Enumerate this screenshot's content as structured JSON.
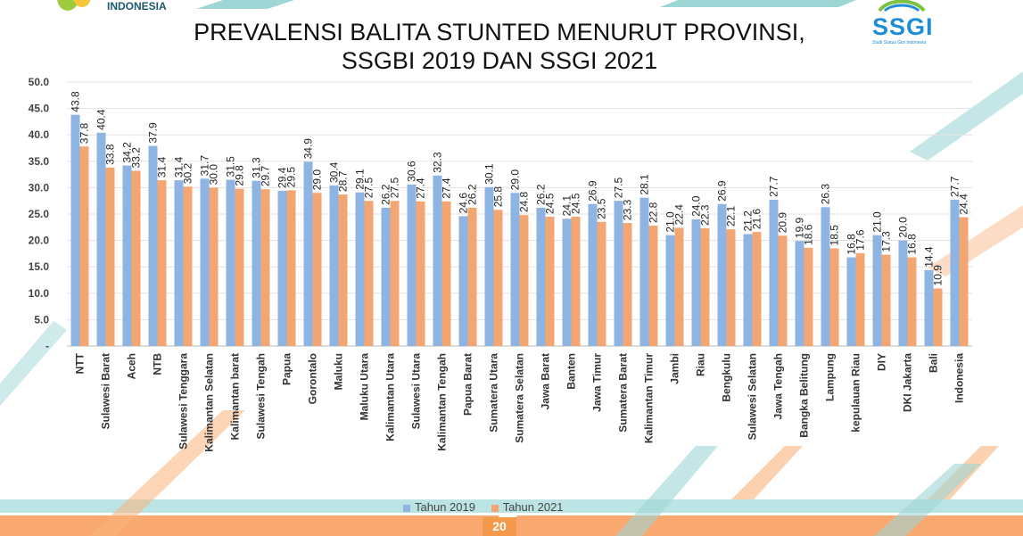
{
  "header": {
    "org_text": "INDONESIA",
    "title_line1": "PREVALENSI BALITA STUNTED MENURUT PROVINSI,",
    "title_line2": "SSGBI 2019 DAN SSGI 2021",
    "logo_word": "SSGI",
    "logo_sub": "Studi Status Gizi Indonesia"
  },
  "footer": {
    "page_number": "20"
  },
  "colors": {
    "series_2019": "#8eb4e3",
    "series_2021": "#f4a672",
    "teal": "#9ed6d6",
    "orange": "#f9b27c"
  },
  "chart_data": {
    "type": "bar",
    "title": "PREVALENSI BALITA STUNTED MENURUT PROVINSI, SSGBI 2019 DAN SSGI 2021",
    "ylim": [
      0,
      50
    ],
    "yticks": [
      "-",
      "5.0",
      "10.0",
      "15.0",
      "20.0",
      "25.0",
      "30.0",
      "35.0",
      "40.0",
      "45.0",
      "50.0"
    ],
    "grid": true,
    "legend_position": "bottom",
    "categories": [
      "NTT",
      "Sulawesi Barat",
      "Aceh",
      "NTB",
      "Sulawesi Tenggara",
      "Kalimantan Selatan",
      "Kalimantan barat",
      "Sulawesi Tengah",
      "Papua",
      "Gorontalo",
      "Maluku",
      "Maluku Utara",
      "Kalimantan Utara",
      "Sulawesi Utara",
      "Kalimantan Tengah",
      "Papua Barat",
      "Sumatera Utara",
      "Sumatera Selatan",
      "Jawa Barat",
      "Banten",
      "Jawa Timur",
      "Sumatera Barat",
      "Kalimantan Timur",
      "Jambi",
      "Riau",
      "Bengkulu",
      "Sulawesi Selatan",
      "Jawa Tengah",
      "Bangka Belitung",
      "Lampung",
      "kepulauan Riau",
      "DIY",
      "DKI Jakarta",
      "Bali",
      "Indonesia"
    ],
    "series": [
      {
        "name": "Tahun 2019",
        "values": [
          43.8,
          40.4,
          34.2,
          37.9,
          31.4,
          31.7,
          31.5,
          31.3,
          29.4,
          34.9,
          30.4,
          29.1,
          26.2,
          30.6,
          32.3,
          24.6,
          30.1,
          29.0,
          26.2,
          24.1,
          26.9,
          27.5,
          28.1,
          21.0,
          24.0,
          26.9,
          21.2,
          27.7,
          19.9,
          26.3,
          16.8,
          21.0,
          20.0,
          14.4,
          27.7
        ]
      },
      {
        "name": "Tahun 2021",
        "values": [
          37.8,
          33.8,
          33.2,
          31.4,
          30.2,
          30.0,
          29.8,
          29.7,
          29.5,
          29.0,
          28.7,
          27.5,
          27.5,
          27.4,
          27.4,
          26.2,
          25.8,
          24.8,
          24.5,
          24.5,
          23.5,
          23.3,
          22.8,
          22.4,
          22.3,
          22.1,
          21.6,
          20.9,
          18.6,
          18.5,
          17.6,
          17.3,
          16.8,
          10.9,
          24.4
        ]
      }
    ]
  }
}
